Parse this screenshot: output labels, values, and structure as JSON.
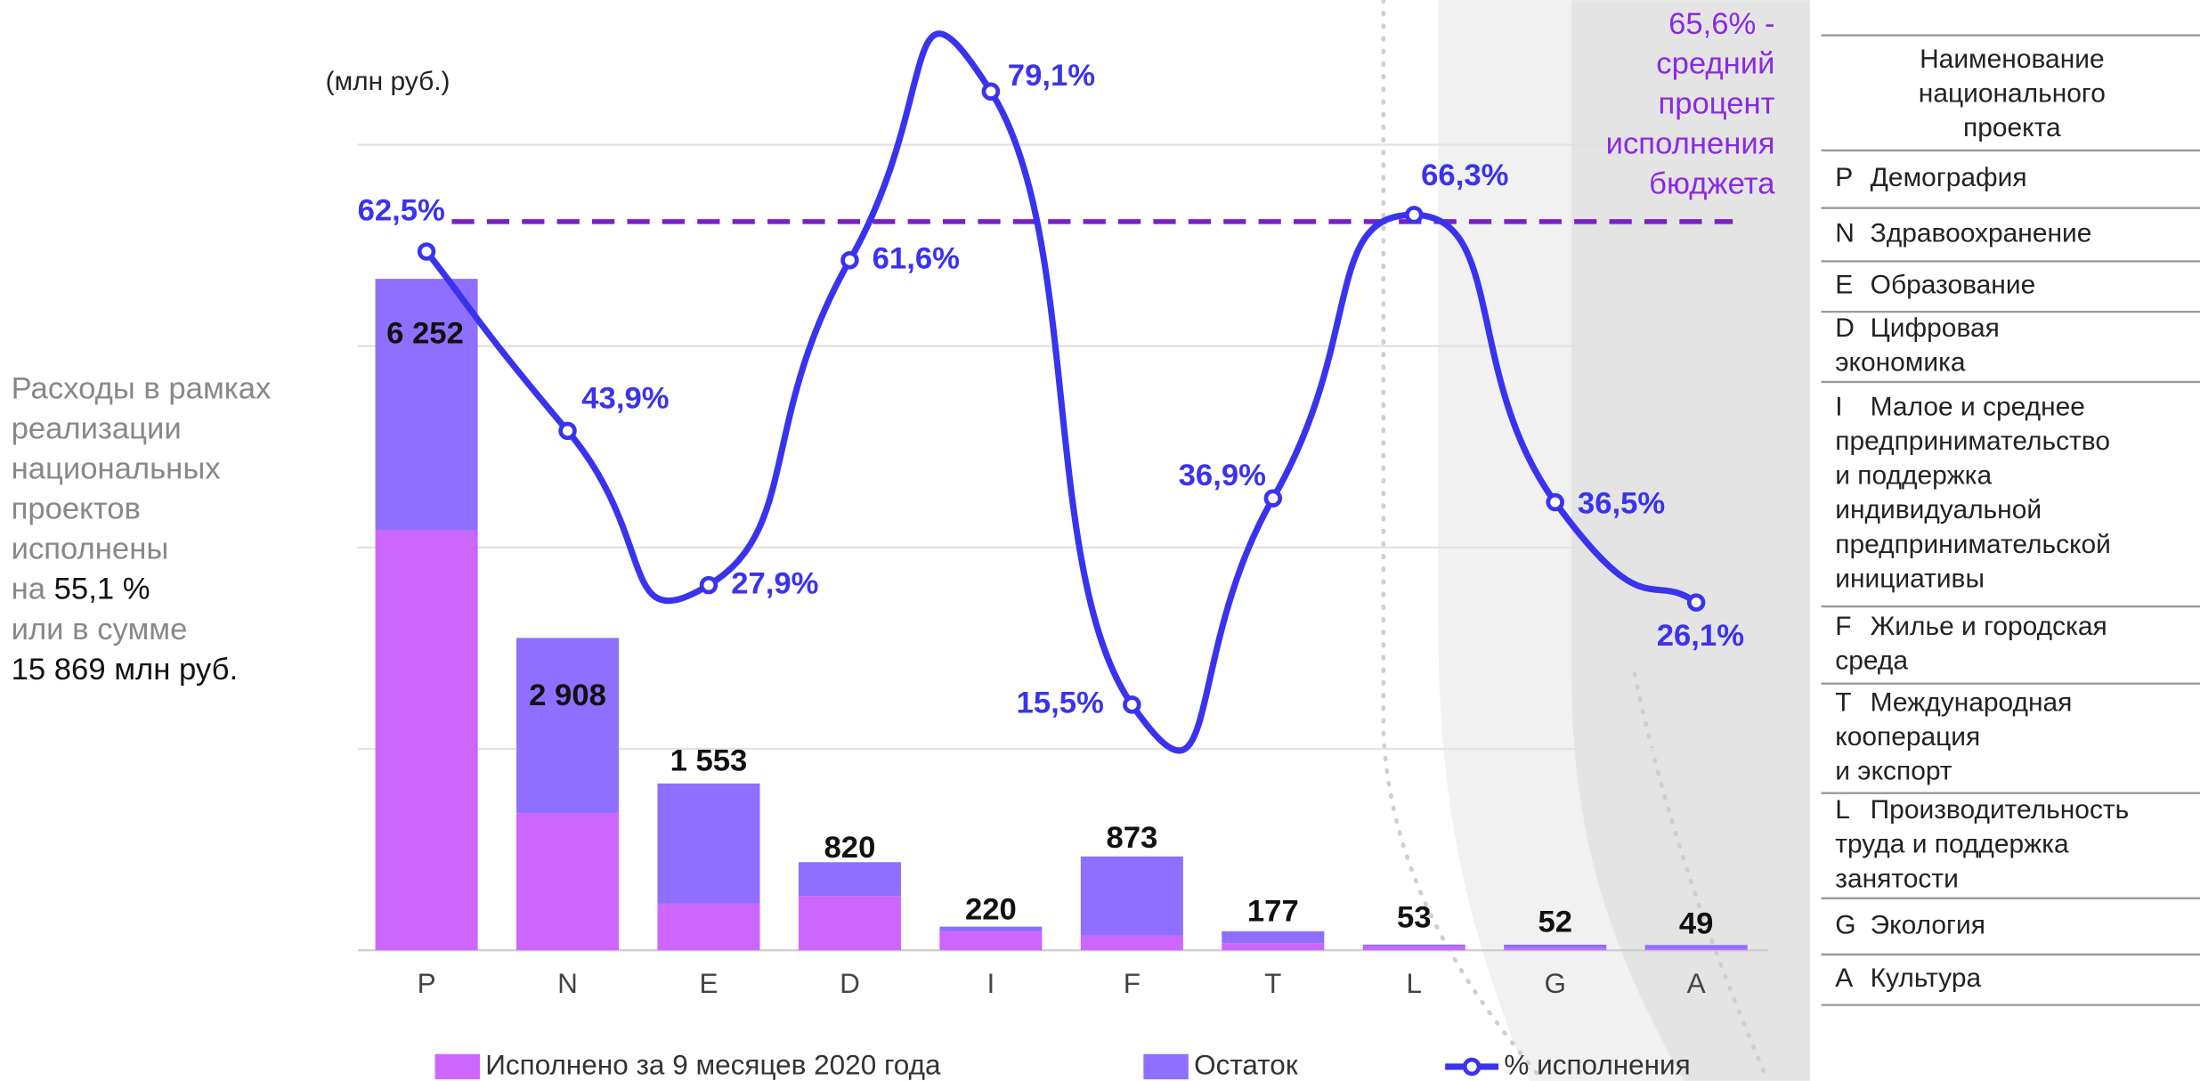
{
  "chart_data": {
    "type": "bar_line",
    "y_unit": "(млн руб.)",
    "categories": [
      "P",
      "N",
      "E",
      "D",
      "I",
      "F",
      "T",
      "L",
      "G",
      "A"
    ],
    "ylim": [
      0,
      7500
    ],
    "yticks": [
      0,
      1875,
      3750,
      5625,
      7500
    ],
    "grid": true,
    "y2lim": [
      0,
      100
    ],
    "series": [
      {
        "name": "Исполнено за 9 месяцев 2020 года",
        "color": "#cc66ff",
        "values": [
          3908,
          1277,
          433,
          505,
          174,
          135,
          65,
          35,
          19,
          13
        ]
      },
      {
        "name": "Остаток",
        "color": "#8f6fff",
        "values": [
          2344,
          1631,
          1120,
          315,
          46,
          738,
          112,
          18,
          33,
          36
        ]
      },
      {
        "name": "% исполнения",
        "color": "#3a33ee",
        "axis": "y2",
        "values": [
          62.5,
          43.9,
          27.9,
          61.6,
          79.1,
          15.5,
          36.9,
          66.3,
          36.5,
          26.1
        ],
        "value_labels": [
          "62,5%",
          "43,9%",
          "27,9%",
          "61,6%",
          "79,1%",
          "15,5%",
          "36,9%",
          "66,3%",
          "36,5%",
          "26,1%"
        ]
      }
    ],
    "totals": {
      "values": [
        6252,
        2908,
        1553,
        820,
        220,
        873,
        177,
        53,
        52,
        49
      ],
      "value_labels": [
        "6 252",
        "2 908",
        "1 553",
        "820",
        "220",
        "873",
        "177",
        "53",
        "52",
        "49"
      ]
    },
    "average": {
      "value": 65.6,
      "color": "#7a1fc8",
      "label_lines": [
        "65,6% -",
        "средний",
        "процент",
        "исполнения",
        "бюджета"
      ]
    }
  },
  "note": [
    [
      "Расходы в рамках"
    ],
    [
      "реализации"
    ],
    [
      "национальных"
    ],
    [
      "проектов"
    ],
    [
      "исполнены"
    ],
    [
      "на ",
      "55,1 %"
    ],
    [
      "или в сумме"
    ],
    [
      "15 869 млн руб."
    ]
  ],
  "table": {
    "header": [
      "Наименование",
      "национального",
      "проекта"
    ],
    "rows": [
      {
        "code": "P",
        "lines": [
          "Демография"
        ]
      },
      {
        "code": "N",
        "lines": [
          "Здравоохранение"
        ]
      },
      {
        "code": "E",
        "lines": [
          "Образование"
        ]
      },
      {
        "code": "D",
        "lines": [
          "Цифровая",
          "экономика"
        ]
      },
      {
        "code": "I",
        "lines": [
          "Малое и среднее",
          "предпринимательство",
          "и поддержка",
          "индивидуальной",
          "предпринимательской",
          "инициативы"
        ]
      },
      {
        "code": "F",
        "lines": [
          "Жилье и городская",
          "среда"
        ]
      },
      {
        "code": "T",
        "lines": [
          "Международная",
          "кооперация",
          "и экспорт"
        ]
      },
      {
        "code": "L",
        "lines": [
          "Производительность",
          "труда и поддержка",
          "занятости"
        ]
      },
      {
        "code": "G",
        "lines": [
          "Экология"
        ]
      },
      {
        "code": "A",
        "lines": [
          "Культура"
        ]
      }
    ]
  }
}
